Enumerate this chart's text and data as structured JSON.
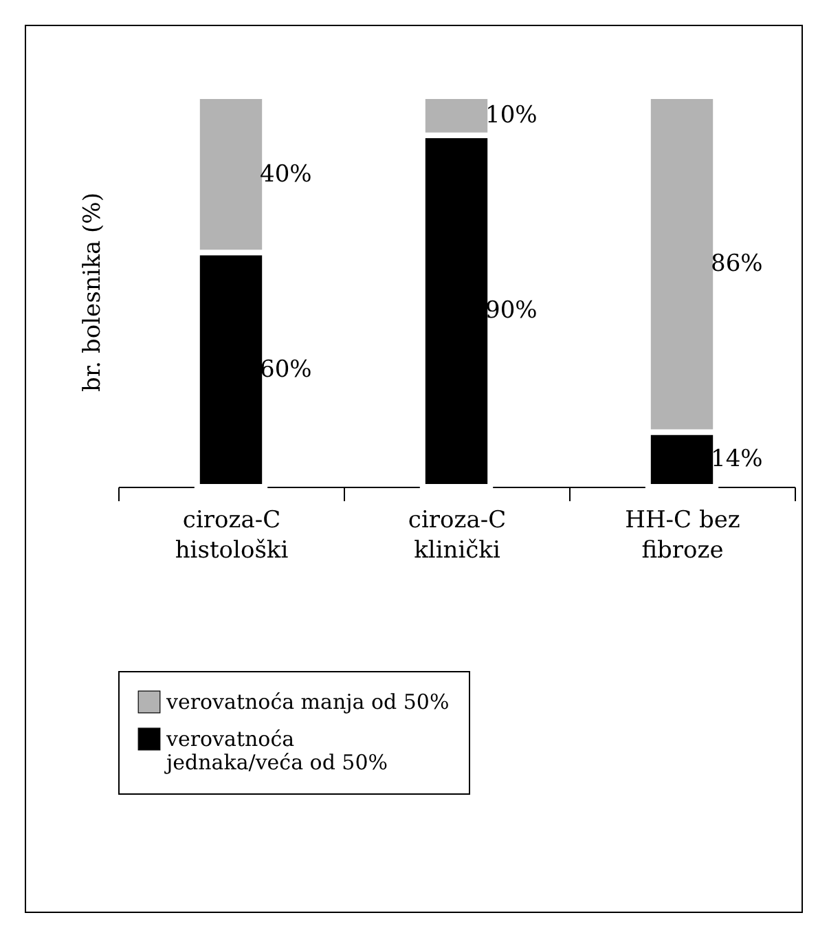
{
  "chart_data": {
    "type": "bar",
    "ylabel": "br. bolesnika (%)",
    "categories": [
      "ciroza-C\nhistološki",
      "ciroza-C\nklinički",
      "HH-C bez\nfibroze"
    ],
    "stacked": true,
    "legend": "bottom",
    "grid": false,
    "series": [
      {
        "name": "verovatnoća\njednaka/veća od 50%",
        "color": "#000000",
        "values": [
          60,
          90,
          14
        ],
        "value_labels": [
          "60%",
          "90%",
          "14%"
        ]
      },
      {
        "name": "verovatnoća manja od 50%",
        "color": "#b3b3b3",
        "values": [
          40,
          10,
          86
        ],
        "value_labels": [
          "40%",
          "10%",
          "86%"
        ]
      }
    ]
  }
}
